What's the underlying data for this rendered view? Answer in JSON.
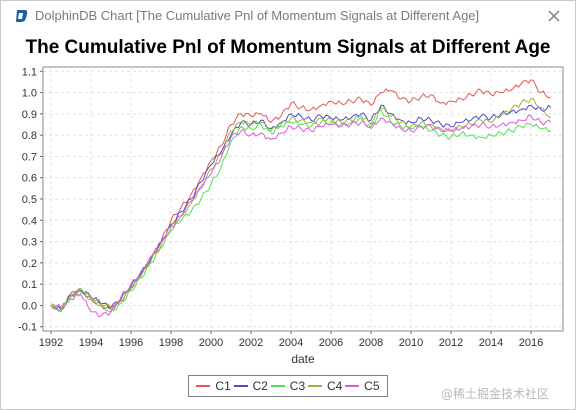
{
  "window": {
    "title": "DolphinDB Chart [The Cumulative Pnl of Momentum Signals at Different Age]",
    "close_icon": "close-icon",
    "app_icon": "dolphindb-logo-icon"
  },
  "watermark": "@稀土掘金技术社区",
  "colors": {
    "C1": "#e05a5a",
    "C2": "#4b4bd6",
    "C3": "#4fe04f",
    "C4": "#9ab53a",
    "C5": "#e05ae0"
  },
  "chart_data": {
    "type": "line",
    "title": "The Cumulative Pnl of Momentum Signals at Different Age",
    "xlabel": "date",
    "ylabel": "",
    "xlim": [
      1991.6,
      2017.6
    ],
    "ylim": [
      -0.12,
      1.12
    ],
    "x_ticks": [
      "1992",
      "1994",
      "1996",
      "1998",
      "2000",
      "2002",
      "2004",
      "2006",
      "2008",
      "2010",
      "2012",
      "2014",
      "2016"
    ],
    "y_ticks": [
      "-0.1",
      "0.0",
      "0.1",
      "0.2",
      "0.3",
      "0.4",
      "0.5",
      "0.6",
      "0.7",
      "0.8",
      "0.9",
      "1.0",
      "1.1"
    ],
    "grid": true,
    "legend_position": "bottom-center",
    "x": [
      1992.0,
      1992.5,
      1993.0,
      1993.5,
      1994.0,
      1994.5,
      1995.0,
      1995.5,
      1996.0,
      1996.5,
      1997.0,
      1997.5,
      1998.0,
      1998.5,
      1999.0,
      1999.5,
      2000.0,
      2000.5,
      2001.0,
      2001.5,
      2002.0,
      2002.5,
      2003.0,
      2003.5,
      2004.0,
      2004.5,
      2005.0,
      2005.5,
      2006.0,
      2006.5,
      2007.0,
      2007.5,
      2008.0,
      2008.5,
      2009.0,
      2009.5,
      2010.0,
      2010.5,
      2011.0,
      2011.5,
      2012.0,
      2012.5,
      2013.0,
      2013.5,
      2014.0,
      2014.5,
      2015.0,
      2015.5,
      2016.0,
      2016.5,
      2017.0
    ],
    "series": [
      {
        "name": "C1",
        "values": [
          0.0,
          -0.02,
          0.06,
          0.07,
          0.03,
          0.0,
          -0.02,
          0.02,
          0.08,
          0.14,
          0.22,
          0.3,
          0.4,
          0.46,
          0.52,
          0.6,
          0.68,
          0.75,
          0.85,
          0.9,
          0.89,
          0.9,
          0.86,
          0.89,
          0.95,
          0.93,
          0.92,
          0.94,
          0.96,
          0.95,
          0.96,
          0.97,
          0.94,
          1.0,
          1.01,
          0.97,
          0.96,
          0.98,
          0.99,
          0.95,
          0.96,
          0.97,
          0.99,
          1.01,
          0.99,
          1.0,
          1.01,
          1.04,
          1.06,
          1.0,
          0.98
        ]
      },
      {
        "name": "C2",
        "values": [
          0.0,
          -0.02,
          0.05,
          0.07,
          0.04,
          0.01,
          -0.01,
          0.03,
          0.09,
          0.15,
          0.22,
          0.3,
          0.38,
          0.44,
          0.5,
          0.58,
          0.66,
          0.72,
          0.8,
          0.86,
          0.85,
          0.87,
          0.83,
          0.86,
          0.9,
          0.89,
          0.87,
          0.89,
          0.88,
          0.87,
          0.88,
          0.9,
          0.87,
          0.94,
          0.9,
          0.87,
          0.86,
          0.88,
          0.87,
          0.85,
          0.84,
          0.86,
          0.87,
          0.89,
          0.88,
          0.9,
          0.91,
          0.92,
          0.94,
          0.92,
          0.93
        ]
      },
      {
        "name": "C3",
        "values": [
          0.0,
          -0.03,
          0.04,
          0.06,
          0.03,
          0.0,
          -0.03,
          0.01,
          0.07,
          0.13,
          0.2,
          0.27,
          0.35,
          0.4,
          0.44,
          0.5,
          0.57,
          0.65,
          0.77,
          0.84,
          0.83,
          0.85,
          0.81,
          0.84,
          0.86,
          0.85,
          0.84,
          0.86,
          0.86,
          0.85,
          0.86,
          0.88,
          0.83,
          0.92,
          0.86,
          0.84,
          0.83,
          0.84,
          0.82,
          0.8,
          0.79,
          0.81,
          0.8,
          0.79,
          0.8,
          0.81,
          0.82,
          0.84,
          0.85,
          0.83,
          0.82
        ]
      },
      {
        "name": "C4",
        "values": [
          0.0,
          -0.02,
          0.05,
          0.08,
          0.04,
          0.01,
          -0.01,
          0.02,
          0.08,
          0.14,
          0.21,
          0.28,
          0.37,
          0.42,
          0.48,
          0.56,
          0.64,
          0.71,
          0.82,
          0.86,
          0.85,
          0.86,
          0.82,
          0.85,
          0.88,
          0.87,
          0.86,
          0.88,
          0.87,
          0.86,
          0.87,
          0.89,
          0.85,
          0.93,
          0.89,
          0.86,
          0.84,
          0.86,
          0.85,
          0.83,
          0.82,
          0.84,
          0.85,
          0.87,
          0.86,
          0.89,
          0.92,
          0.95,
          0.97,
          0.93,
          0.88
        ]
      },
      {
        "name": "C5",
        "values": [
          0.0,
          -0.01,
          0.03,
          0.05,
          -0.03,
          -0.05,
          -0.03,
          0.04,
          0.1,
          0.16,
          0.23,
          0.3,
          0.37,
          0.42,
          0.49,
          0.55,
          0.62,
          0.69,
          0.79,
          0.82,
          0.8,
          0.81,
          0.78,
          0.81,
          0.84,
          0.83,
          0.82,
          0.84,
          0.85,
          0.84,
          0.85,
          0.86,
          0.84,
          0.88,
          0.86,
          0.83,
          0.82,
          0.84,
          0.84,
          0.82,
          0.82,
          0.83,
          0.84,
          0.85,
          0.84,
          0.85,
          0.86,
          0.87,
          0.89,
          0.86,
          0.86
        ]
      }
    ]
  }
}
